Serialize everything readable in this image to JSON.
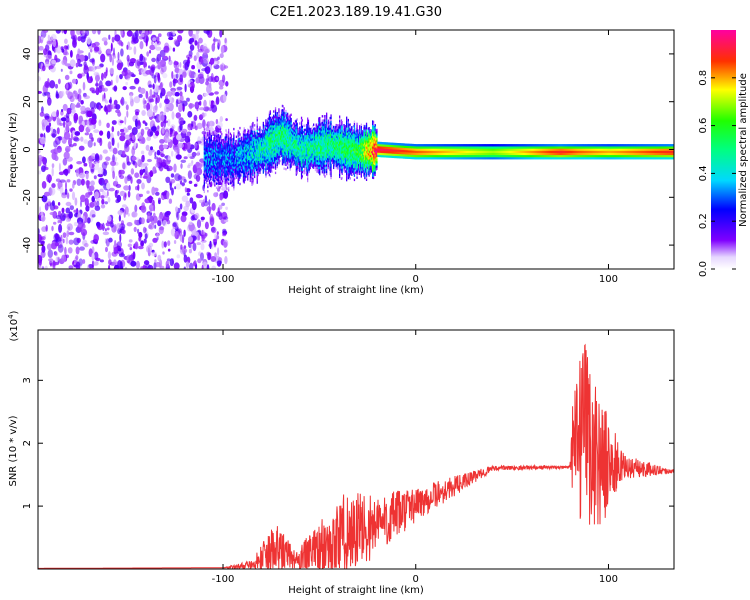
{
  "title": "C2E1.2023.189.19.41.G30",
  "chart_data": [
    {
      "type": "heatmap",
      "xlabel": "Height of straight line (km)",
      "ylabel": "Frequency (Hz)",
      "xlim": [
        -196,
        134
      ],
      "ylim": [
        -50,
        50
      ],
      "xticks": [
        -100,
        0,
        100
      ],
      "yticks": [
        -40,
        -20,
        0,
        20,
        40
      ],
      "colorbar": {
        "label": "Normalized spectral amplitude",
        "range": [
          0,
          1
        ],
        "ticks": [
          0.0,
          0.2,
          0.4,
          0.6,
          0.8
        ]
      },
      "ridge": [
        {
          "x": -95,
          "f": -4,
          "amp": 0.3
        },
        {
          "x": -80,
          "f": 0,
          "amp": 0.45
        },
        {
          "x": -70,
          "f": 6,
          "amp": 0.5
        },
        {
          "x": -60,
          "f": 0,
          "amp": 0.45
        },
        {
          "x": -45,
          "f": 2,
          "amp": 0.5
        },
        {
          "x": -30,
          "f": -1,
          "amp": 0.55
        },
        {
          "x": -20,
          "f": 0,
          "amp": 0.95
        },
        {
          "x": 0,
          "f": -1,
          "amp": 0.85
        },
        {
          "x": 40,
          "f": -1,
          "amp": 0.7
        },
        {
          "x": 75,
          "f": -1,
          "amp": 0.9
        },
        {
          "x": 84,
          "f": -1,
          "amp": 0.85
        },
        {
          "x": 100,
          "f": -1,
          "amp": 0.8
        },
        {
          "x": 134,
          "f": -1,
          "amp": 0.9
        }
      ]
    },
    {
      "type": "line",
      "xlabel": "Height of straight line (km)",
      "ylabel": "SNR (10 * v/v)",
      "scale_label": "(x10",
      "scale_exp": "4",
      "scale_close": ")",
      "xlim": [
        -196,
        134
      ],
      "ylim": [
        0,
        3.8
      ],
      "xticks": [
        -100,
        0,
        100
      ],
      "yticks": [
        1,
        2,
        3
      ],
      "color": "#ee3333",
      "envelope": [
        {
          "x": -196,
          "base": 0.01,
          "amp": 0.0
        },
        {
          "x": -100,
          "base": 0.02,
          "amp": 0.0
        },
        {
          "x": -85,
          "base": 0.05,
          "amp": 0.1
        },
        {
          "x": -73,
          "base": 0.25,
          "amp": 0.55
        },
        {
          "x": -62,
          "base": 0.12,
          "amp": 0.2
        },
        {
          "x": -48,
          "base": 0.3,
          "amp": 0.6
        },
        {
          "x": -35,
          "base": 0.5,
          "amp": 0.9
        },
        {
          "x": -20,
          "base": 0.65,
          "amp": 0.6
        },
        {
          "x": 0,
          "base": 1.0,
          "amp": 0.35
        },
        {
          "x": 20,
          "base": 1.3,
          "amp": 0.2
        },
        {
          "x": 40,
          "base": 1.6,
          "amp": 0.05
        },
        {
          "x": 80,
          "base": 1.62,
          "amp": 0.03
        },
        {
          "x": 82,
          "base": 1.8,
          "amp": 1.4
        },
        {
          "x": 88,
          "base": 2.0,
          "amp": 1.8
        },
        {
          "x": 96,
          "base": 1.6,
          "amp": 1.3
        },
        {
          "x": 108,
          "base": 1.6,
          "amp": 0.25
        },
        {
          "x": 134,
          "base": 1.55,
          "amp": 0.03
        }
      ]
    }
  ]
}
